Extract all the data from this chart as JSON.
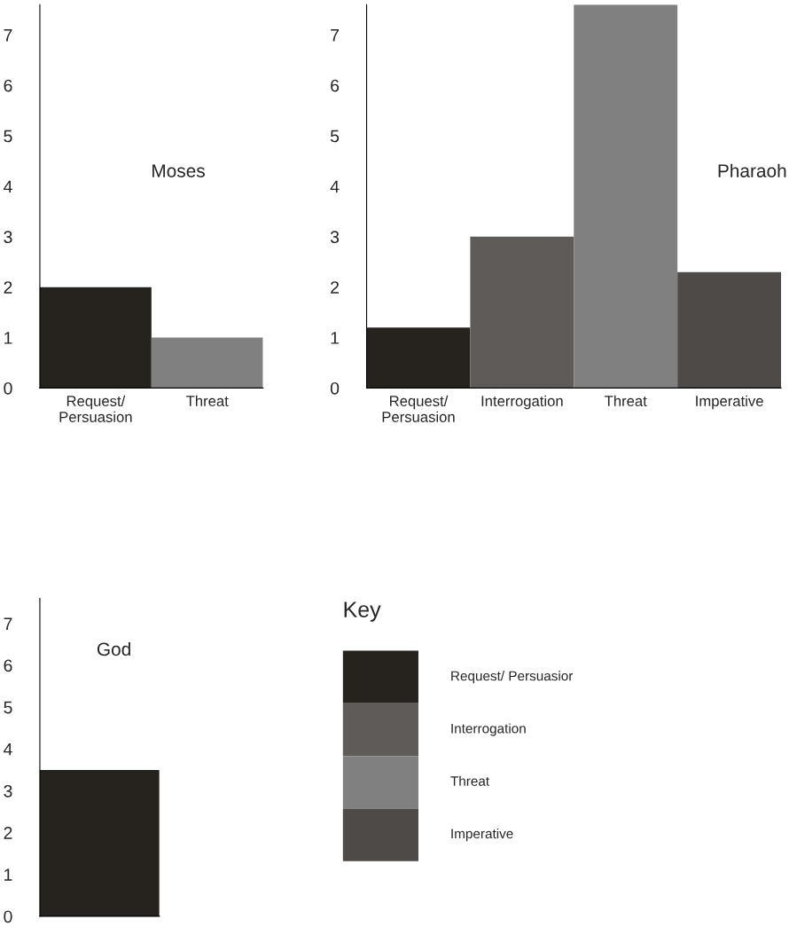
{
  "chart_data": [
    {
      "type": "bar",
      "title": "Moses",
      "categories": [
        "Request/\nPersuasion",
        "Threat"
      ],
      "colors": [
        "#26231f",
        "#808080"
      ],
      "values": [
        2,
        1
      ],
      "ylim": [
        0,
        7.6
      ],
      "yticks": [
        0,
        1,
        2,
        3,
        4,
        5,
        6,
        7
      ],
      "grid": false
    },
    {
      "type": "bar",
      "title": "Pharaoh",
      "categories": [
        "Request/\nPersuasion",
        "Interrogation",
        "Threat",
        "Imperative"
      ],
      "colors": [
        "#26231f",
        "#5f5b59",
        "#808080",
        "#4e4a47"
      ],
      "values": [
        1.2,
        3,
        7.6,
        2.3
      ],
      "ylim": [
        0,
        7.6
      ],
      "yticks": [
        0,
        1,
        2,
        3,
        4,
        5,
        6,
        7
      ],
      "grid": false
    },
    {
      "type": "bar",
      "title": "God",
      "categories": [
        null
      ],
      "colors": [
        "#26231f"
      ],
      "values": [
        3.5
      ],
      "ylim": [
        0,
        7.6
      ],
      "yticks": [
        0,
        1,
        2,
        3,
        4,
        5,
        6,
        7
      ],
      "grid": false
    },
    {
      "type": "other",
      "title": "Key",
      "categories": [
        "Request/ Persuasior",
        "Interrogation",
        "Threat",
        "Imperative"
      ],
      "colors": [
        "#26231f",
        "#5f5b59",
        "#808080",
        "#4e4a47"
      ]
    }
  ]
}
